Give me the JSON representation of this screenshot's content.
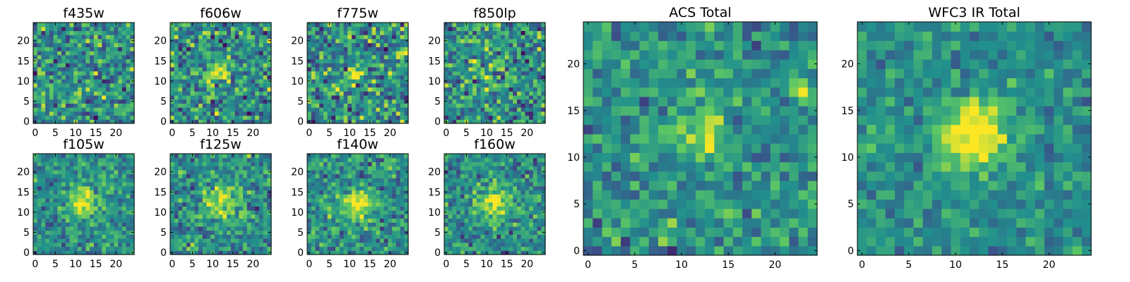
{
  "figure": {
    "colormap": "viridis",
    "colormap_stops": [
      "#440154",
      "#3b528b",
      "#21908d",
      "#5dc863",
      "#fde725"
    ],
    "pixels_per_side": 25,
    "panels": [
      {
        "title": "f435w",
        "xticks": [
          "0",
          "5",
          "10",
          "15",
          "20"
        ],
        "yticks": [
          "0",
          "5",
          "10",
          "15",
          "20"
        ],
        "chart_data": {
          "type": "heatmap",
          "source": {
            "x": 12,
            "y": 12,
            "sigma": 2.0,
            "amp": 0.0
          },
          "noise": 0.32,
          "seed": 11,
          "hotspots": []
        }
      },
      {
        "title": "f606w",
        "xticks": [
          "0",
          "5",
          "10",
          "15",
          "20"
        ],
        "yticks": [
          "0",
          "5",
          "10",
          "15",
          "20"
        ],
        "chart_data": {
          "type": "heatmap",
          "source": {
            "x": 11,
            "y": 12.5,
            "sigma": 1.8,
            "amp": 0.45
          },
          "noise": 0.32,
          "seed": 23,
          "hotspots": []
        }
      },
      {
        "title": "f775w",
        "xticks": [
          "0",
          "5",
          "10",
          "15",
          "20"
        ],
        "yticks": [
          "0",
          "5",
          "10",
          "15",
          "20"
        ],
        "chart_data": {
          "type": "heatmap",
          "source": {
            "x": 11,
            "y": 12,
            "sigma": 1.5,
            "amp": 0.35
          },
          "noise": 0.34,
          "seed": 37,
          "hotspots": [
            {
              "x": 23,
              "y": 17,
              "amp": 0.55
            }
          ]
        }
      },
      {
        "title": "f850lp",
        "xticks": [
          "0",
          "5",
          "10",
          "15",
          "20"
        ],
        "yticks": [
          "0",
          "5",
          "10",
          "15",
          "20"
        ],
        "chart_data": {
          "type": "heatmap",
          "source": {
            "x": 10,
            "y": 12,
            "sigma": 2.2,
            "amp": 0.2
          },
          "noise": 0.32,
          "seed": 41,
          "hotspots": []
        }
      },
      {
        "title": "f105w",
        "xticks": [
          "0",
          "5",
          "10",
          "15",
          "20"
        ],
        "yticks": [
          "0",
          "5",
          "10",
          "15",
          "20"
        ],
        "chart_data": {
          "type": "heatmap",
          "source": {
            "x": 12,
            "y": 12.5,
            "sigma": 2.4,
            "amp": 0.55
          },
          "noise": 0.22,
          "seed": 53,
          "hotspots": []
        }
      },
      {
        "title": "f125w",
        "xticks": [
          "0",
          "5",
          "10",
          "15",
          "20"
        ],
        "yticks": [
          "0",
          "5",
          "10",
          "15",
          "20"
        ],
        "chart_data": {
          "type": "heatmap",
          "source": {
            "x": 12,
            "y": 13,
            "sigma": 3.0,
            "amp": 0.45
          },
          "noise": 0.25,
          "seed": 67,
          "hotspots": []
        }
      },
      {
        "title": "f140w",
        "xticks": [
          "0",
          "5",
          "10",
          "15",
          "20"
        ],
        "yticks": [
          "0",
          "5",
          "10",
          "15",
          "20"
        ],
        "chart_data": {
          "type": "heatmap",
          "source": {
            "x": 12,
            "y": 12,
            "sigma": 2.8,
            "amp": 0.45
          },
          "noise": 0.24,
          "seed": 71,
          "hotspots": []
        }
      },
      {
        "title": "f160w",
        "xticks": [
          "0",
          "5",
          "10",
          "15",
          "20"
        ],
        "yticks": [
          "0",
          "5",
          "10",
          "15",
          "20"
        ],
        "chart_data": {
          "type": "heatmap",
          "source": {
            "x": 12,
            "y": 12.5,
            "sigma": 2.8,
            "amp": 0.45
          },
          "noise": 0.24,
          "seed": 83,
          "hotspots": []
        }
      },
      {
        "title": "ACS Total",
        "xticks": [
          "0",
          "5",
          "10",
          "15",
          "20"
        ],
        "yticks": [
          "0",
          "5",
          "10",
          "15",
          "20"
        ],
        "chart_data": {
          "type": "heatmap",
          "source": {
            "x": 12,
            "y": 12.5,
            "sigma": 1.6,
            "amp": 0.45
          },
          "noise": 0.22,
          "seed": 97,
          "hotspots": [
            {
              "x": 23,
              "y": 17,
              "amp": 0.6
            }
          ]
        }
      },
      {
        "title": "WFC3 IR Total",
        "xticks": [
          "0",
          "5",
          "10",
          "15",
          "20"
        ],
        "yticks": [
          "0",
          "5",
          "10",
          "15",
          "20"
        ],
        "chart_data": {
          "type": "heatmap",
          "source": {
            "x": 12,
            "y": 12.5,
            "sigma": 2.6,
            "amp": 0.6
          },
          "noise": 0.17,
          "seed": 101,
          "hotspots": []
        }
      }
    ]
  }
}
